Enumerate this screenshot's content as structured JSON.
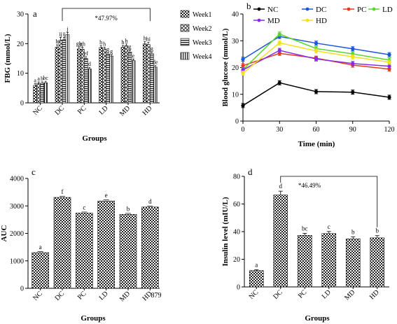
{
  "chart_data": [
    {
      "panel": "a",
      "type": "bar",
      "title": "",
      "xlabel": "Groups",
      "ylabel": "FBG (mmol/L)",
      "ylim": [
        0,
        30
      ],
      "yticks": [
        0,
        10,
        20,
        30
      ],
      "categories": [
        "NC",
        "DC",
        "PC",
        "LD",
        "MD",
        "HD"
      ],
      "series": [
        {
          "name": "Week1",
          "values": [
            5.9,
            18.8,
            18.2,
            18.7,
            18.8,
            19.9
          ],
          "errors": [
            0.6,
            0.8,
            0.7,
            0.7,
            0.6,
            0.8
          ],
          "labels": [
            "a",
            "h",
            "gh",
            "h",
            "h",
            "h"
          ]
        },
        {
          "name": "Week2",
          "values": [
            6.6,
            21.2,
            18.1,
            18.2,
            19.3,
            19.7
          ],
          "errors": [
            0.5,
            0.9,
            0.7,
            0.6,
            0.6,
            0.7
          ],
          "labels": [
            "a",
            "ij",
            "gh",
            "h",
            "h",
            "hi"
          ]
        },
        {
          "name": "Week3",
          "values": [
            6.6,
            21.3,
            15.0,
            16.5,
            17.2,
            16.6
          ],
          "errors": [
            0.5,
            0.8,
            0.6,
            0.5,
            0.6,
            0.6
          ],
          "labels": [
            "b",
            "ij",
            "ef",
            "g",
            "g",
            "g"
          ]
        },
        {
          "name": "Week4",
          "values": [
            6.8,
            23.0,
            11.5,
            15.8,
            14.3,
            12.1
          ],
          "errors": [
            0.5,
            0.8,
            0.5,
            0.5,
            0.5,
            0.5
          ],
          "labels": [
            "bc",
            "j",
            "d",
            "g",
            "e",
            "de"
          ]
        }
      ],
      "annotation": "*47.97%",
      "legend": [
        "Week1",
        "Week2",
        "Week3",
        "Week4"
      ],
      "legend_position": "right"
    },
    {
      "panel": "b",
      "type": "line",
      "title": "",
      "xlabel": "Time (min)",
      "ylabel": "Blood glucose (mmol/L)",
      "x": [
        0,
        30,
        60,
        90,
        120
      ],
      "xlim": [
        0,
        120
      ],
      "ylim": [
        0,
        40
      ],
      "xticks": [
        0,
        30,
        60,
        90,
        120
      ],
      "yticks": [
        0,
        10,
        20,
        30,
        40
      ],
      "series": [
        {
          "name": "NC",
          "color": "#000000",
          "values": [
            5.8,
            14.3,
            11.0,
            10.8,
            8.9
          ]
        },
        {
          "name": "DC",
          "color": "#1a56d6",
          "values": [
            23.1,
            31.6,
            29.1,
            27.0,
            24.8
          ]
        },
        {
          "name": "PC",
          "color": "#e63a1e",
          "values": [
            20.7,
            25.3,
            23.5,
            20.9,
            19.4
          ]
        },
        {
          "name": "LD",
          "color": "#5dd62c",
          "values": [
            19.2,
            32.5,
            27.1,
            25.1,
            22.8
          ]
        },
        {
          "name": "MD",
          "color": "#8a2be2",
          "values": [
            19.1,
            26.4,
            23.2,
            21.5,
            20.5
          ]
        },
        {
          "name": "HD",
          "color": "#f2e01a",
          "values": [
            17.9,
            29.2,
            26.2,
            24.0,
            22.0
          ]
        }
      ],
      "legend_position": "top"
    },
    {
      "panel": "c",
      "type": "bar",
      "title": "",
      "xlabel": "Groups",
      "ylabel": "AUC",
      "ylim": [
        0,
        4000
      ],
      "yticks": [
        0,
        1000,
        2000,
        3000,
        4000
      ],
      "categories": [
        "NC",
        "DC",
        "PC",
        "LD",
        "MD",
        "HD"
      ],
      "values": [
        1300,
        3310,
        2740,
        3180,
        2690,
        2960
      ],
      "labels": [
        "a",
        "f",
        "c",
        "e",
        "b",
        "d"
      ],
      "annotation": "879"
    },
    {
      "panel": "d",
      "type": "bar",
      "title": "",
      "xlabel": "Groups",
      "ylabel": "Insulin level (mIU/L)",
      "ylim": [
        0,
        80
      ],
      "yticks": [
        0,
        20,
        40,
        60,
        80
      ],
      "categories": [
        "NC",
        "DC",
        "PC",
        "LD",
        "MD",
        "HD"
      ],
      "values": [
        11.8,
        66.5,
        37.3,
        38.6,
        34.8,
        35.5
      ],
      "errors": [
        0.6,
        2.8,
        1.5,
        1.5,
        1.4,
        1.6
      ],
      "labels": [
        "a",
        "d",
        "bc",
        "c",
        "b",
        "b"
      ],
      "annotation": "*46.49%"
    }
  ]
}
